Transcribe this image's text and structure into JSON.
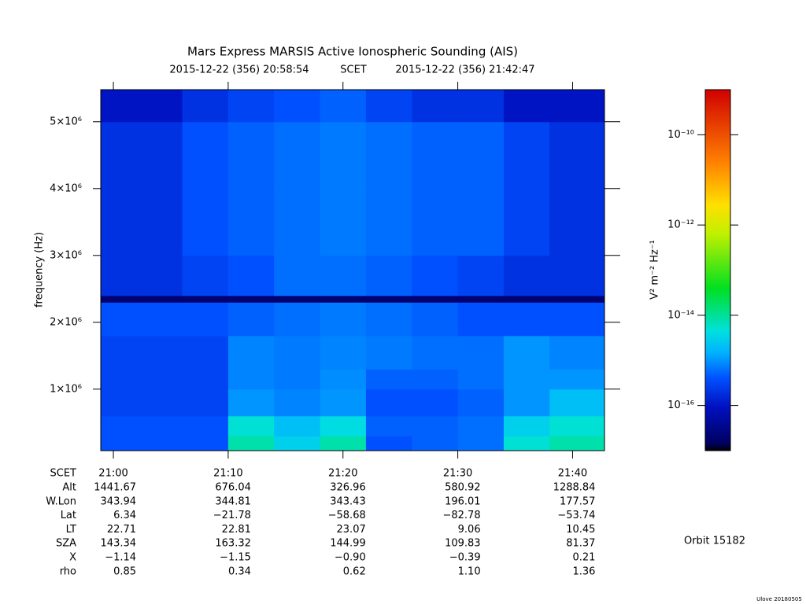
{
  "chart_data": {
    "type": "heatmap",
    "title": "Mars Express MARSIS Active Ionospheric Sounding (AIS)",
    "subtitle_start": "2015-12-22 (356) 20:58:54",
    "subtitle_mid": "SCET",
    "subtitle_end": "2015-12-22 (356) 21:42:47",
    "ylabel": "frequency (Hz)",
    "colorbar_label": "V² m⁻² Hz⁻¹",
    "xlim": [
      1258.9,
      1302.78
    ],
    "xticks": [
      {
        "value": 1260,
        "label": "21:00"
      },
      {
        "value": 1270,
        "label": "21:10"
      },
      {
        "value": 1280,
        "label": "21:20"
      },
      {
        "value": 1290,
        "label": "21:30"
      },
      {
        "value": 1300,
        "label": "21:40"
      }
    ],
    "ylim": [
      80000,
      5480000
    ],
    "yticks": [
      {
        "value": 1000000,
        "label": "1×10⁶"
      },
      {
        "value": 2000000,
        "label": "2×10⁶"
      },
      {
        "value": 3000000,
        "label": "3×10⁶"
      },
      {
        "value": 4000000,
        "label": "4×10⁶"
      },
      {
        "value": 5000000,
        "label": "5×10⁶"
      }
    ],
    "zscale": "log",
    "zlim": [
      1e-17,
      1e-09
    ],
    "zticks": [
      {
        "value": 1e-16,
        "label": "10⁻¹⁶"
      },
      {
        "value": 1e-14,
        "label": "10⁻¹⁴"
      },
      {
        "value": 1e-12,
        "label": "10⁻¹²"
      },
      {
        "value": 1e-10,
        "label": "10⁻¹⁰"
      }
    ],
    "x_edges": [
      1258.9,
      1262,
      1266,
      1270,
      1274,
      1278,
      1282,
      1286,
      1290,
      1294,
      1298,
      1302.78
    ],
    "y_edges": [
      80000,
      300000,
      600000,
      1000000,
      1300000,
      1800000,
      2300000,
      2400000,
      3000000,
      4000000,
      5000000,
      5480000
    ],
    "z": [
      [
        4e-16,
        4e-16,
        4e-16,
        8e-15,
        3e-15,
        8e-15,
        4e-16,
        5e-16,
        6e-16,
        5e-15,
        8e-15
      ],
      [
        4e-16,
        4e-16,
        4e-16,
        5e-15,
        2e-15,
        4e-15,
        5e-16,
        5e-16,
        6e-16,
        3e-15,
        5e-15
      ],
      [
        3e-16,
        3e-16,
        3e-16,
        1e-15,
        8e-16,
        1e-15,
        4e-16,
        4e-16,
        5e-16,
        1e-15,
        2e-15
      ],
      [
        3e-16,
        3e-16,
        3e-16,
        8e-16,
        7e-16,
        9e-16,
        5e-16,
        5e-16,
        6e-16,
        1e-15,
        1e-15
      ],
      [
        3e-16,
        3e-16,
        3e-16,
        8e-16,
        7e-16,
        8e-16,
        7e-16,
        6e-16,
        6e-16,
        1e-15,
        8e-16
      ],
      [
        4e-16,
        4e-16,
        4e-16,
        5e-16,
        6e-16,
        7e-16,
        6e-16,
        5e-16,
        4e-16,
        4e-16,
        4e-16
      ],
      [
        2e-17,
        2e-17,
        2e-17,
        2e-17,
        2e-17,
        2e-17,
        2e-17,
        2e-17,
        2e-17,
        2e-17,
        2e-17
      ],
      [
        2e-16,
        2e-16,
        3e-16,
        4e-16,
        6e-16,
        6e-16,
        5e-16,
        4e-16,
        3e-16,
        2e-16,
        2e-16
      ],
      [
        2e-16,
        2e-16,
        4e-16,
        5e-16,
        6e-16,
        7e-16,
        6e-16,
        5e-16,
        5e-16,
        3e-16,
        2e-16
      ],
      [
        2e-16,
        2e-16,
        4e-16,
        5e-16,
        6e-16,
        7e-16,
        6e-16,
        5e-16,
        5e-16,
        3e-16,
        2e-16
      ],
      [
        1e-16,
        1e-16,
        2e-16,
        3e-16,
        4e-16,
        5e-16,
        3e-16,
        2e-16,
        2e-16,
        1e-16,
        1e-16
      ]
    ]
  },
  "ephemeris": {
    "scet_label": "SCET",
    "rows": [
      {
        "label": "Alt",
        "values": [
          "1441.67",
          "676.04",
          "326.96",
          "580.92",
          "1288.84"
        ]
      },
      {
        "label": "W.Lon",
        "values": [
          "343.94",
          "344.81",
          "343.43",
          "196.01",
          "177.57"
        ]
      },
      {
        "label": "Lat",
        "values": [
          "6.34",
          "−21.78",
          "−58.68",
          "−82.78",
          "−53.74"
        ]
      },
      {
        "label": "LT",
        "values": [
          "22.71",
          "22.81",
          "23.07",
          "9.06",
          "10.45"
        ]
      },
      {
        "label": "SZA",
        "values": [
          "143.34",
          "163.32",
          "144.99",
          "109.83",
          "81.37"
        ]
      },
      {
        "label": "X",
        "values": [
          "−1.14",
          "−1.15",
          "−0.90",
          "−0.39",
          "0.21"
        ]
      },
      {
        "label": "rho",
        "values": [
          "0.85",
          "0.34",
          "0.62",
          "1.10",
          "1.36"
        ]
      }
    ]
  },
  "orbit": "Orbit 15182",
  "credit": "Ulove 20180505"
}
